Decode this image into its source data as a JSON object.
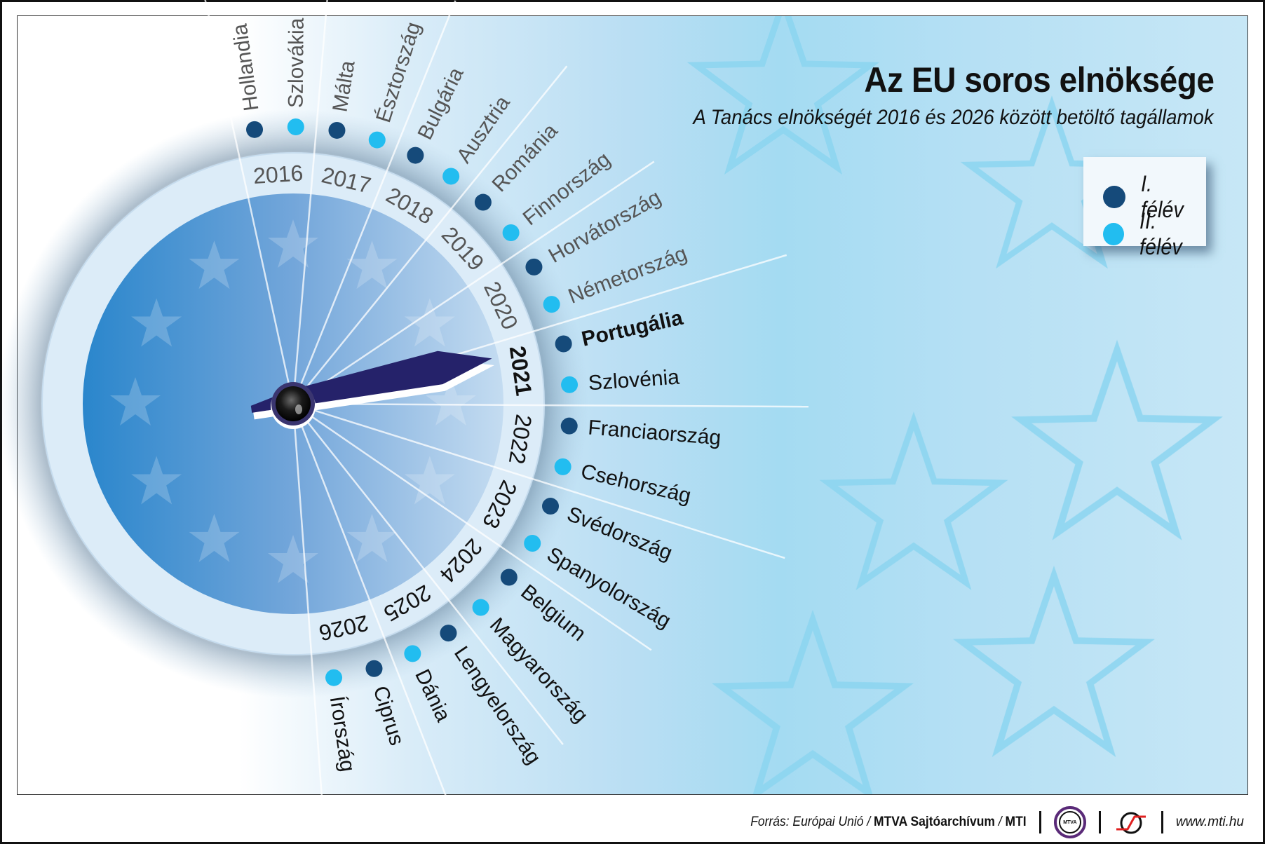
{
  "header": {
    "title": "Az EU soros elnöksége",
    "subtitle": "A Tanács elnökségét 2016 és 2026 között betöltő tagállamok"
  },
  "legend": {
    "items": [
      {
        "label": "I. félév",
        "color": "#154a7a"
      },
      {
        "label": "II. félév",
        "color": "#22bdf0"
      }
    ]
  },
  "dial": {
    "current_year": "2021",
    "current_country": "Portugália",
    "years": [
      "2016",
      "2017",
      "2018",
      "2019",
      "2020",
      "2021",
      "2022",
      "2023",
      "2024",
      "2025",
      "2026"
    ],
    "presidencies": [
      {
        "year": "2016",
        "half": 1,
        "country": "Hollandia"
      },
      {
        "year": "2016",
        "half": 2,
        "country": "Szlovákia"
      },
      {
        "year": "2017",
        "half": 1,
        "country": "Málta"
      },
      {
        "year": "2017",
        "half": 2,
        "country": "Észtország"
      },
      {
        "year": "2018",
        "half": 1,
        "country": "Bulgária"
      },
      {
        "year": "2018",
        "half": 2,
        "country": "Ausztria"
      },
      {
        "year": "2019",
        "half": 1,
        "country": "Románia"
      },
      {
        "year": "2019",
        "half": 2,
        "country": "Finnország"
      },
      {
        "year": "2020",
        "half": 1,
        "country": "Horvátország"
      },
      {
        "year": "2020",
        "half": 2,
        "country": "Németország"
      },
      {
        "year": "2021",
        "half": 1,
        "country": "Portugália"
      },
      {
        "year": "2021",
        "half": 2,
        "country": "Szlovénia"
      },
      {
        "year": "2022",
        "half": 1,
        "country": "Franciaország"
      },
      {
        "year": "2022",
        "half": 2,
        "country": "Csehország"
      },
      {
        "year": "2023",
        "half": 1,
        "country": "Svédország"
      },
      {
        "year": "2023",
        "half": 2,
        "country": "Spanyolország"
      },
      {
        "year": "2024",
        "half": 1,
        "country": "Belgium"
      },
      {
        "year": "2024",
        "half": 2,
        "country": "Magyarország"
      },
      {
        "year": "2025",
        "half": 1,
        "country": "Lengyelország"
      },
      {
        "year": "2025",
        "half": 2,
        "country": "Dánia"
      },
      {
        "year": "2026",
        "half": 1,
        "country": "Ciprus"
      },
      {
        "year": "2026",
        "half": 2,
        "country": "Írország"
      }
    ]
  },
  "colors": {
    "first_half": "#154a7a",
    "second_half": "#22bdf0",
    "hand": "#25226a",
    "past_text": "#555555",
    "future_text": "#111111"
  },
  "footer": {
    "source_prefix": "Forrás: Európai Unió / ",
    "source_bold": "MTVA Sajtóarchívum",
    "source_sep": " / ",
    "source_mti": "MTI",
    "mtva_logo_text": "MTVA",
    "url": "www.mti.hu"
  }
}
